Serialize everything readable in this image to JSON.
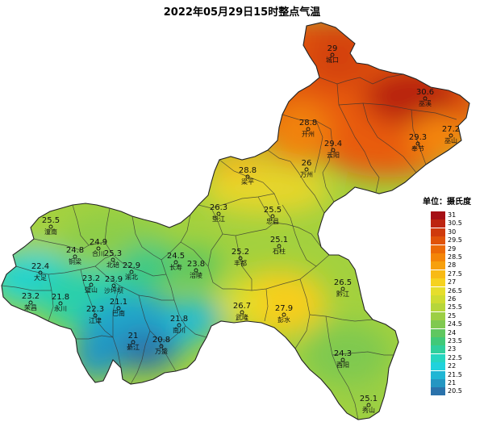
{
  "title": "2022年05月29日15时整点气温",
  "legend": {
    "title": "单位：摄氏度",
    "items": [
      {
        "label": "31",
        "color": "#a50f15"
      },
      {
        "label": "30.5",
        "color": "#bd2410"
      },
      {
        "label": "30",
        "color": "#cf3a0c"
      },
      {
        "label": "29.5",
        "color": "#e05309"
      },
      {
        "label": "29",
        "color": "#ec6a06"
      },
      {
        "label": "28.5",
        "color": "#f48507"
      },
      {
        "label": "28",
        "color": "#f7a00d"
      },
      {
        "label": "27.5",
        "color": "#f8ba15"
      },
      {
        "label": "27",
        "color": "#f6d21e"
      },
      {
        "label": "26.5",
        "color": "#e6de2b"
      },
      {
        "label": "26",
        "color": "#cfdc31"
      },
      {
        "label": "25.5",
        "color": "#b6d63a"
      },
      {
        "label": "25",
        "color": "#9ccf45"
      },
      {
        "label": "24.5",
        "color": "#7fc950"
      },
      {
        "label": "24",
        "color": "#5fc760"
      },
      {
        "label": "23.5",
        "color": "#40c979"
      },
      {
        "label": "23",
        "color": "#2fcf9c"
      },
      {
        "label": "22.5",
        "color": "#25d6c0"
      },
      {
        "label": "22",
        "color": "#20d2dc"
      },
      {
        "label": "21.5",
        "color": "#1fb6d4"
      },
      {
        "label": "21",
        "color": "#2496c2"
      },
      {
        "label": "20.5",
        "color": "#2a72ab"
      }
    ]
  },
  "stations": [
    {
      "name": "城口",
      "value": "29"
    },
    {
      "name": "巫溪",
      "value": "30.6"
    },
    {
      "name": "开州",
      "value": "28.8"
    },
    {
      "name": "云阳",
      "value": "29.4"
    },
    {
      "name": "奉节",
      "value": "29.3"
    },
    {
      "name": "巫山",
      "value": "27.2"
    },
    {
      "name": "万州",
      "value": "26"
    },
    {
      "name": "梁平",
      "value": "28.8"
    },
    {
      "name": "垫江",
      "value": "26.3"
    },
    {
      "name": "忠县",
      "value": "25.5"
    },
    {
      "name": "石柱",
      "value": "25.1"
    },
    {
      "name": "潼南",
      "value": "25.5"
    },
    {
      "name": "铜梁",
      "value": "24.8"
    },
    {
      "name": "合川",
      "value": "24.9"
    },
    {
      "name": "北碚",
      "value": "25.3"
    },
    {
      "name": "渝北",
      "value": "22.9"
    },
    {
      "name": "长寿",
      "value": "24.5"
    },
    {
      "name": "涪陵",
      "value": "23.8"
    },
    {
      "name": "丰都",
      "value": "25.2"
    },
    {
      "name": "大足",
      "value": "22.4"
    },
    {
      "name": "璧山",
      "value": "23.2"
    },
    {
      "name": "沙坪坝",
      "value": "23.9"
    },
    {
      "name": "荣昌",
      "value": "23.2"
    },
    {
      "name": "永川",
      "value": "21.8"
    },
    {
      "name": "江津",
      "value": "22.3"
    },
    {
      "name": "巴南",
      "value": "21.1"
    },
    {
      "name": "南川",
      "value": "21.8"
    },
    {
      "name": "綦江",
      "value": "21"
    },
    {
      "name": "万盛",
      "value": "20.8"
    },
    {
      "name": "武隆",
      "value": "26.7"
    },
    {
      "name": "彭水",
      "value": "27.9"
    },
    {
      "name": "黔江",
      "value": "26.5"
    },
    {
      "name": "酉阳",
      "value": "24.3"
    },
    {
      "name": "秀山",
      "value": "25.1"
    }
  ]
}
